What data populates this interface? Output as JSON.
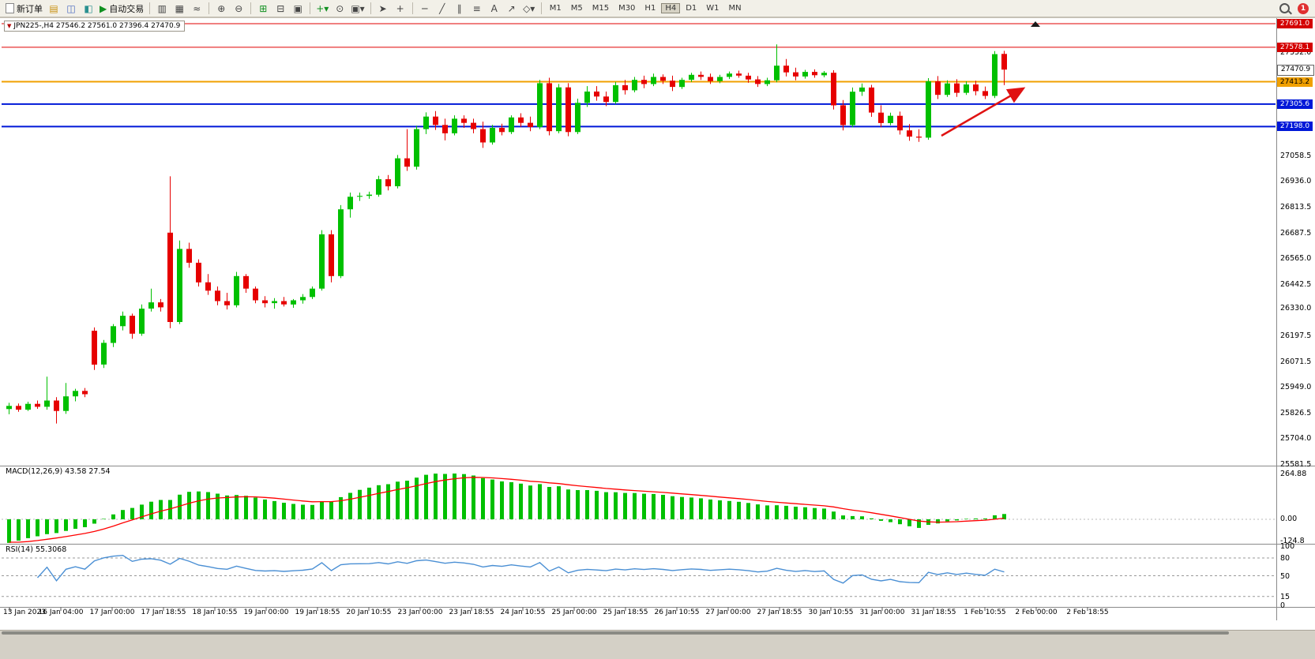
{
  "toolbar": {
    "new_order": "新订单",
    "auto_trading": "自动交易",
    "timeframes": [
      "M1",
      "M5",
      "M15",
      "M30",
      "H1",
      "H4",
      "D1",
      "W1",
      "MN"
    ],
    "active_timeframe": "H4",
    "notification_count": "1",
    "icons": {
      "charts_grid": "▤",
      "profiles": "◫",
      "navigator": "◧",
      "play": "▶",
      "bar_chart": "▥",
      "candle_chart": "▦",
      "line_chart": "≈",
      "zoom_in": "⊕",
      "zoom_out": "⊖",
      "tile_windows": "⊞",
      "cascade_windows": "⊟",
      "arrange_windows": "▣",
      "new_chart": "+",
      "clock": "⊙",
      "templates": "▾",
      "cursor": "➤",
      "crosshair": "+",
      "hline": "─",
      "trendline": "╱",
      "channel": "∥",
      "fibonacci": "≡",
      "text_tool": "A",
      "arrow_tool": "↗",
      "shapes": "◇",
      "dropdown": "▾"
    }
  },
  "chart": {
    "symbol_info": "JPN225-,H4  27546.2 27561.0 27396.4 27470.9",
    "price_labels": [
      {
        "label": "27691.0",
        "price": 27691.0,
        "bg": "#d40000",
        "fg": "#ffffff",
        "line_color": "#e00000",
        "line_width": 1
      },
      {
        "label": "27578.1",
        "price": 27578.1,
        "bg": "#d40000",
        "fg": "#ffffff",
        "line_color": "#e00000",
        "line_width": 1
      },
      {
        "label": "27470.9",
        "price": 27470.9,
        "bg": "#ffffff",
        "fg": "#000000",
        "border": "#666666"
      },
      {
        "label": "27413.2",
        "price": 27413.2,
        "bg": "#f0a000",
        "fg": "#000000",
        "line_color": "#f0a000",
        "line_width": 2
      },
      {
        "label": "27305.6",
        "price": 27305.6,
        "bg": "#0018d8",
        "fg": "#ffffff",
        "line_color": "#0018d8",
        "line_width": 2
      },
      {
        "label": "27198.0",
        "price": 27198.0,
        "bg": "#0018d8",
        "fg": "#ffffff",
        "line_color": "#0018d8",
        "line_width": 2
      }
    ],
    "axis_ticks": [
      {
        "label": "27552.0",
        "price": 27552.0
      },
      {
        "label": "27058.5",
        "price": 27058.5
      },
      {
        "label": "26936.0",
        "price": 26936.0
      },
      {
        "label": "26813.5",
        "price": 26813.5
      },
      {
        "label": "26687.5",
        "price": 26687.5
      },
      {
        "label": "26565.0",
        "price": 26565.0
      },
      {
        "label": "26442.5",
        "price": 26442.5
      },
      {
        "label": "26330.0",
        "price": 26330.0
      },
      {
        "label": "26197.5",
        "price": 26197.5
      },
      {
        "label": "26071.5",
        "price": 26071.5
      },
      {
        "label": "25949.0",
        "price": 25949.0
      },
      {
        "label": "25826.5",
        "price": 25826.5
      },
      {
        "label": "25704.0",
        "price": 25704.0
      },
      {
        "label": "25581.5",
        "price": 25581.5
      }
    ],
    "time_labels": [
      "13 Jan 2023",
      "16 Jan 04:00",
      "17 Jan 00:00",
      "17 Jan 18:55",
      "18 Jan 10:55",
      "19 Jan 00:00",
      "19 Jan 18:55",
      "20 Jan 10:55",
      "23 Jan 00:00",
      "23 Jan 18:55",
      "24 Jan 10:55",
      "25 Jan 00:00",
      "25 Jan 18:55",
      "26 Jan 10:55",
      "27 Jan 00:00",
      "27 Jan 18:55",
      "30 Jan 10:55",
      "31 Jan 00:00",
      "31 Jan 18:55",
      "1 Feb 10:55",
      "2 Feb 00:00",
      "2 Feb 18:55"
    ]
  },
  "macd_panel": {
    "label": "MACD(12,26,9) 43.58 27.54",
    "axis_labels": [
      "264.88",
      "0.00",
      "-124.8"
    ]
  },
  "rsi_panel": {
    "label": "RSI(14) 55.3068",
    "axis_labels": [
      "100",
      "80",
      "50",
      "15",
      "0"
    ],
    "levels": [
      80,
      50,
      15
    ]
  },
  "annotation": {
    "arrow_color": "#e01212"
  },
  "chart_data": {
    "type": "candlestick",
    "symbol": "JPN225-",
    "timeframe": "H4",
    "title": "JPN225-,H4",
    "current_ohlc": {
      "open": 27546.2,
      "high": 27561.0,
      "low": 27396.4,
      "close": 27470.9
    },
    "price_range": [
      25581.5,
      27691.0
    ],
    "up_color": "#00c000",
    "down_color": "#e60000",
    "horizontal_levels": [
      27691.0,
      27578.1,
      27413.2,
      27305.6,
      27198.0
    ],
    "indicators": [
      {
        "type": "MACD",
        "params": [
          12,
          26,
          9
        ],
        "value": 43.58,
        "signal_value": 27.54,
        "axis_range": [
          -124.8,
          264.88
        ]
      },
      {
        "type": "RSI",
        "params": [
          14
        ],
        "value": 55.3068,
        "axis_range": [
          0,
          100
        ],
        "levels": [
          80,
          50,
          15
        ]
      }
    ],
    "candles": [
      [
        25845,
        25875,
        25820,
        25860
      ],
      [
        25860,
        25872,
        25832,
        25842
      ],
      [
        25842,
        25880,
        25836,
        25870
      ],
      [
        25870,
        25886,
        25846,
        25856
      ],
      [
        25856,
        26000,
        25842,
        25886
      ],
      [
        25886,
        25902,
        25776,
        25836
      ],
      [
        25836,
        25970,
        25822,
        25906
      ],
      [
        25906,
        25942,
        25882,
        25932
      ],
      [
        25932,
        25946,
        25902,
        25916
      ],
      [
        26220,
        26236,
        26032,
        26058
      ],
      [
        26058,
        26176,
        26042,
        26162
      ],
      [
        26162,
        26252,
        26142,
        26242
      ],
      [
        26242,
        26312,
        26222,
        26292
      ],
      [
        26292,
        26302,
        26182,
        26206
      ],
      [
        26206,
        26346,
        26196,
        26326
      ],
      [
        26326,
        26422,
        26312,
        26356
      ],
      [
        26356,
        26372,
        26312,
        26332
      ],
      [
        26690,
        26960,
        26232,
        26262
      ],
      [
        26262,
        26652,
        26252,
        26612
      ],
      [
        26612,
        26642,
        26522,
        26546
      ],
      [
        26546,
        26562,
        26432,
        26452
      ],
      [
        26452,
        26492,
        26392,
        26412
      ],
      [
        26412,
        26432,
        26342,
        26362
      ],
      [
        26362,
        26402,
        26322,
        26342
      ],
      [
        26342,
        26502,
        26332,
        26482
      ],
      [
        26482,
        26492,
        26402,
        26422
      ],
      [
        26422,
        26432,
        26352,
        26366
      ],
      [
        26366,
        26386,
        26332,
        26352
      ],
      [
        26352,
        26376,
        26326,
        26362
      ],
      [
        26362,
        26382,
        26336,
        26346
      ],
      [
        26346,
        26372,
        26330,
        26366
      ],
      [
        26366,
        26396,
        26350,
        26382
      ],
      [
        26382,
        26432,
        26372,
        26422
      ],
      [
        26422,
        26702,
        26412,
        26682
      ],
      [
        26682,
        26702,
        26452,
        26482
      ],
      [
        26482,
        26822,
        26472,
        26802
      ],
      [
        26802,
        26882,
        26762,
        26862
      ],
      [
        26862,
        26882,
        26842,
        26866
      ],
      [
        26866,
        26886,
        26852,
        26872
      ],
      [
        26872,
        26962,
        26862,
        26946
      ],
      [
        26946,
        26966,
        26892,
        26912
      ],
      [
        26912,
        27062,
        26902,
        27046
      ],
      [
        27046,
        27186,
        26986,
        27006
      ],
      [
        27006,
        27202,
        26992,
        27186
      ],
      [
        27186,
        27266,
        27162,
        27246
      ],
      [
        27246,
        27272,
        27182,
        27206
      ],
      [
        27206,
        27236,
        27132,
        27166
      ],
      [
        27166,
        27252,
        27156,
        27236
      ],
      [
        27236,
        27252,
        27192,
        27216
      ],
      [
        27216,
        27236,
        27166,
        27186
      ],
      [
        27186,
        27222,
        27096,
        27122
      ],
      [
        27122,
        27206,
        27112,
        27192
      ],
      [
        27192,
        27212,
        27156,
        27172
      ],
      [
        27172,
        27252,
        27162,
        27242
      ],
      [
        27242,
        27262,
        27196,
        27216
      ],
      [
        27216,
        27246,
        27176,
        27196
      ],
      [
        27196,
        27422,
        27186,
        27406
      ],
      [
        27406,
        27432,
        27156,
        27176
      ],
      [
        27176,
        27402,
        27166,
        27386
      ],
      [
        27386,
        27406,
        27152,
        27172
      ],
      [
        27172,
        27332,
        27162,
        27312
      ],
      [
        27312,
        27392,
        27292,
        27366
      ],
      [
        27366,
        27392,
        27322,
        27342
      ],
      [
        27342,
        27366,
        27296,
        27316
      ],
      [
        27316,
        27412,
        27306,
        27396
      ],
      [
        27396,
        27422,
        27352,
        27372
      ],
      [
        27372,
        27436,
        27362,
        27422
      ],
      [
        27422,
        27442,
        27382,
        27402
      ],
      [
        27402,
        27452,
        27392,
        27436
      ],
      [
        27436,
        27448,
        27402,
        27418
      ],
      [
        27418,
        27442,
        27368,
        27388
      ],
      [
        27388,
        27432,
        27378,
        27422
      ],
      [
        27422,
        27456,
        27412,
        27446
      ],
      [
        27446,
        27462,
        27422,
        27436
      ],
      [
        27436,
        27452,
        27402,
        27416
      ],
      [
        27416,
        27446,
        27406,
        27436
      ],
      [
        27436,
        27462,
        27426,
        27452
      ],
      [
        27452,
        27466,
        27432,
        27442
      ],
      [
        27442,
        27456,
        27408,
        27424
      ],
      [
        27424,
        27440,
        27388,
        27402
      ],
      [
        27402,
        27432,
        27392,
        27420
      ],
      [
        27420,
        27592,
        27410,
        27490
      ],
      [
        27490,
        27522,
        27438,
        27458
      ],
      [
        27458,
        27480,
        27420,
        27438
      ],
      [
        27438,
        27470,
        27428,
        27460
      ],
      [
        27460,
        27472,
        27432,
        27444
      ],
      [
        27444,
        27464,
        27434,
        27456
      ],
      [
        27456,
        27468,
        27280,
        27300
      ],
      [
        27300,
        27325,
        27180,
        27205
      ],
      [
        27205,
        27385,
        27195,
        27365
      ],
      [
        27365,
        27405,
        27345,
        27385
      ],
      [
        27385,
        27398,
        27245,
        27265
      ],
      [
        27265,
        27300,
        27195,
        27215
      ],
      [
        27215,
        27265,
        27205,
        27250
      ],
      [
        27250,
        27270,
        27160,
        27180
      ],
      [
        27180,
        27210,
        27130,
        27150
      ],
      [
        27150,
        27185,
        27125,
        27145
      ],
      [
        27145,
        27430,
        27135,
        27415
      ],
      [
        27415,
        27440,
        27330,
        27350
      ],
      [
        27350,
        27420,
        27340,
        27405
      ],
      [
        27405,
        27425,
        27340,
        27360
      ],
      [
        27360,
        27415,
        27350,
        27400
      ],
      [
        27400,
        27418,
        27348,
        27368
      ],
      [
        27368,
        27390,
        27330,
        27345
      ],
      [
        27345,
        27560,
        27335,
        27545
      ],
      [
        27546.2,
        27561.0,
        27396.4,
        27470.9
      ]
    ]
  }
}
